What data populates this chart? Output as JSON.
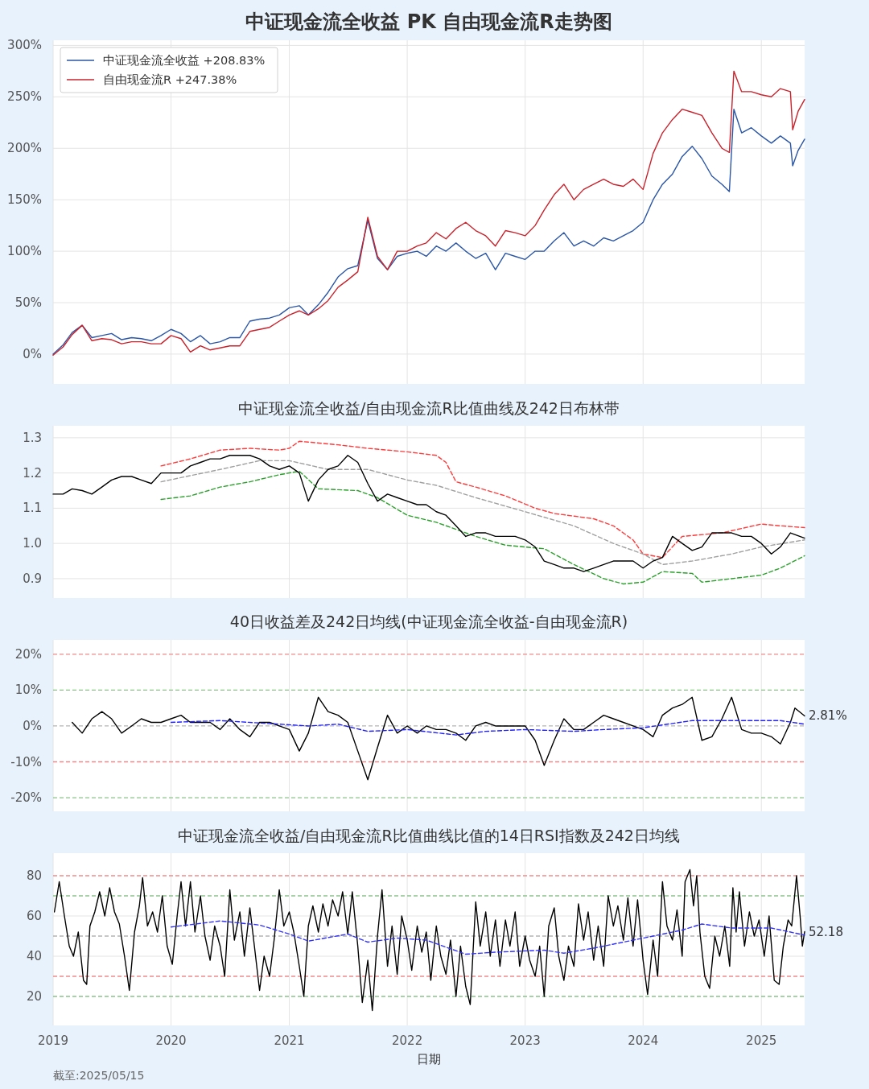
{
  "chart_data": [
    {
      "type": "line",
      "title": "中证现金流全收益 PK 自由现金流R走势图",
      "xlim": [
        "2019-01-01",
        "2025-05-15"
      ],
      "ylim": [
        -29,
        305
      ],
      "xticks": [
        "2019",
        "2020",
        "2021",
        "2022",
        "2023",
        "2024",
        "2025"
      ],
      "yticks": [
        {
          "value": 0,
          "label": "0%"
        },
        {
          "value": 50,
          "label": "50%"
        },
        {
          "value": 100,
          "label": "100%"
        },
        {
          "value": 150,
          "label": "150%"
        },
        {
          "value": 200,
          "label": "200%"
        },
        {
          "value": 250,
          "label": "250%"
        },
        {
          "value": 300,
          "label": "300%"
        }
      ],
      "grid": true,
      "legend": "top left",
      "tick_labels": "y",
      "x": [
        "2019-01",
        "2019-02",
        "2019-03",
        "2019-04",
        "2019-05",
        "2019-06",
        "2019-07",
        "2019-08",
        "2019-09",
        "2019-10",
        "2019-11",
        "2019-12",
        "2020-01",
        "2020-02",
        "2020-03",
        "2020-04",
        "2020-05",
        "2020-06",
        "2020-07",
        "2020-08",
        "2020-09",
        "2020-10",
        "2020-11",
        "2020-12",
        "2021-01",
        "2021-02",
        "2021-03",
        "2021-04",
        "2021-05",
        "2021-06",
        "2021-07",
        "2021-08",
        "2021-09",
        "2021-10",
        "2021-11",
        "2021-12",
        "2022-01",
        "2022-02",
        "2022-03",
        "2022-04",
        "2022-05",
        "2022-06",
        "2022-07",
        "2022-08",
        "2022-09",
        "2022-10",
        "2022-11",
        "2022-12",
        "2023-01",
        "2023-02",
        "2023-03",
        "2023-04",
        "2023-05",
        "2023-06",
        "2023-07",
        "2023-08",
        "2023-09",
        "2023-10",
        "2023-11",
        "2023-12",
        "2024-01",
        "2024-02",
        "2024-03",
        "2024-04",
        "2024-05",
        "2024-06",
        "2024-07",
        "2024-08",
        "2024-09",
        "2024-09-24",
        "2024-10-08",
        "2024-11",
        "2024-12",
        "2025-01",
        "2025-02",
        "2025-03",
        "2025-04",
        "2025-04-08",
        "2025-04-25",
        "2025-05-15"
      ],
      "series": [
        {
          "name": "中证现金流全收益  +208.83%",
          "color": "#2b56a6",
          "values": [
            0,
            9,
            21,
            28,
            16,
            18,
            20,
            14,
            16,
            15,
            13,
            18,
            24,
            20,
            12,
            18,
            10,
            12,
            16,
            16,
            32,
            34,
            35,
            38,
            45,
            47,
            38,
            48,
            60,
            75,
            83,
            86,
            130,
            93,
            82,
            95,
            98,
            100,
            95,
            105,
            100,
            108,
            100,
            93,
            98,
            82,
            98,
            95,
            92,
            100,
            100,
            110,
            118,
            105,
            110,
            105,
            113,
            110,
            115,
            120,
            128,
            150,
            165,
            175,
            192,
            202,
            190,
            173,
            165,
            158,
            238,
            215,
            220,
            212,
            205,
            212,
            205,
            183,
            198,
            208.83
          ]
        },
        {
          "name": "自由现金流R  +247.38%",
          "color": "#c8232c",
          "values": [
            -1,
            7,
            19,
            28,
            13,
            15,
            14,
            10,
            12,
            12,
            10,
            10,
            18,
            15,
            2,
            8,
            4,
            6,
            8,
            8,
            22,
            24,
            26,
            32,
            38,
            42,
            38,
            44,
            52,
            65,
            72,
            80,
            133,
            95,
            82,
            100,
            100,
            105,
            108,
            118,
            112,
            122,
            128,
            120,
            115,
            105,
            120,
            118,
            115,
            125,
            140,
            155,
            165,
            150,
            160,
            165,
            170,
            165,
            163,
            170,
            160,
            195,
            215,
            228,
            238,
            235,
            232,
            215,
            200,
            196,
            275,
            255,
            255,
            252,
            250,
            258,
            255,
            218,
            236,
            247.38
          ]
        }
      ]
    },
    {
      "type": "line",
      "title": "中证现金流全收益/自由现金流R比值曲线及242日布林带",
      "xlim": [
        "2019-01-01",
        "2025-05-15"
      ],
      "ylim": [
        0.845,
        1.334
      ],
      "xticks": [
        "2019",
        "2020",
        "2021",
        "2022",
        "2023",
        "2024",
        "2025"
      ],
      "yticks": [
        0.9,
        {
          "value": 1,
          "label": "1.0"
        },
        1.1,
        1.2,
        1.3
      ],
      "grid": true,
      "tick_labels": "y",
      "x": [
        "2019-01",
        "2019-02",
        "2019-03",
        "2019-04",
        "2019-05",
        "2019-06",
        "2019-07",
        "2019-08",
        "2019-09",
        "2019-10",
        "2019-11",
        "2019-12",
        "2020-01",
        "2020-02",
        "2020-03",
        "2020-04",
        "2020-05",
        "2020-06",
        "2020-07",
        "2020-08",
        "2020-09",
        "2020-10",
        "2020-11",
        "2020-12",
        "2021-01",
        "2021-02",
        "2021-03",
        "2021-04",
        "2021-05",
        "2021-06",
        "2021-07",
        "2021-08",
        "2021-09",
        "2021-10",
        "2021-11",
        "2021-12",
        "2022-01",
        "2022-02",
        "2022-03",
        "2022-04",
        "2022-05",
        "2022-06",
        "2022-07",
        "2022-08",
        "2022-09",
        "2022-10",
        "2022-11",
        "2022-12",
        "2023-01",
        "2023-02",
        "2023-03",
        "2023-04",
        "2023-05",
        "2023-06",
        "2023-07",
        "2023-08",
        "2023-09",
        "2023-10",
        "2023-11",
        "2023-12",
        "2024-01",
        "2024-02",
        "2024-03",
        "2024-04",
        "2024-05",
        "2024-06",
        "2024-07",
        "2024-08",
        "2024-09",
        "2024-10",
        "2024-11",
        "2024-12",
        "2025-01",
        "2025-02",
        "2025-03",
        "2025-04",
        "2025-05-15"
      ],
      "series": [
        {
          "color": "#ff3b3b",
          "line_style": "dashed",
          "x": [
            "2019-12",
            "2020-03",
            "2020-06",
            "2020-09",
            "2020-12",
            "2021-01",
            "2021-02",
            "2021-06",
            "2021-09",
            "2022-01",
            "2022-04",
            "2022-05",
            "2022-06",
            "2022-08",
            "2022-11",
            "2023-02",
            "2023-04",
            "2023-08",
            "2023-10",
            "2023-12",
            "2024-01",
            "2024-03",
            "2024-05",
            "2024-09",
            "2025-01",
            "2025-03",
            "2025-05-15"
          ],
          "values": [
            1.22,
            1.24,
            1.265,
            1.27,
            1.265,
            1.27,
            1.29,
            1.28,
            1.27,
            1.26,
            1.25,
            1.23,
            1.175,
            1.16,
            1.135,
            1.1,
            1.085,
            1.07,
            1.05,
            1.01,
            0.97,
            0.96,
            1.02,
            1.03,
            1.055,
            1.05,
            1.045
          ]
        },
        {
          "color": "#a0a0a0",
          "line_style": "dashed",
          "x": [
            "2019-12",
            "2020-06",
            "2020-10",
            "2021-01",
            "2021-05",
            "2021-09",
            "2022-01",
            "2022-04",
            "2022-08",
            "2023-01",
            "2023-06",
            "2023-10",
            "2024-01",
            "2024-03",
            "2024-06",
            "2024-10",
            "2025-01",
            "2025-05-15"
          ],
          "values": [
            1.175,
            1.21,
            1.235,
            1.235,
            1.21,
            1.21,
            1.18,
            1.165,
            1.13,
            1.09,
            1.05,
            1,
            0.97,
            0.94,
            0.95,
            0.97,
            0.99,
            1.01
          ]
        },
        {
          "color": "#2ca02c",
          "line_style": "dashed",
          "x": [
            "2019-12",
            "2020-03",
            "2020-06",
            "2020-09",
            "2020-12",
            "2021-02",
            "2021-04",
            "2021-08",
            "2021-10",
            "2022-01",
            "2022-04",
            "2022-06",
            "2022-08",
            "2022-11",
            "2023-03",
            "2023-06",
            "2023-09",
            "2023-11",
            "2024-01",
            "2024-03",
            "2024-06",
            "2024-07",
            "2024-10",
            "2025-01",
            "2025-03",
            "2025-05-15"
          ],
          "values": [
            1.125,
            1.135,
            1.16,
            1.175,
            1.195,
            1.205,
            1.155,
            1.15,
            1.13,
            1.08,
            1.06,
            1.04,
            1.02,
            0.995,
            0.985,
            0.94,
            0.9,
            0.885,
            0.89,
            0.92,
            0.915,
            0.89,
            0.9,
            0.91,
            0.93,
            0.965
          ]
        },
        {
          "color": "#000000",
          "values": [
            1.14,
            1.14,
            1.155,
            1.15,
            1.14,
            1.16,
            1.18,
            1.19,
            1.19,
            1.18,
            1.17,
            1.2,
            1.2,
            1.2,
            1.22,
            1.23,
            1.24,
            1.24,
            1.25,
            1.25,
            1.25,
            1.24,
            1.22,
            1.21,
            1.22,
            1.2,
            1.12,
            1.18,
            1.21,
            1.22,
            1.25,
            1.23,
            1.17,
            1.12,
            1.14,
            1.13,
            1.12,
            1.11,
            1.11,
            1.09,
            1.08,
            1.05,
            1.02,
            1.03,
            1.03,
            1.02,
            1.02,
            1.02,
            1.01,
            0.99,
            0.95,
            0.94,
            0.93,
            0.93,
            0.92,
            0.93,
            0.94,
            0.95,
            0.95,
            0.95,
            0.93,
            0.95,
            0.96,
            1.02,
            1,
            0.98,
            0.99,
            1.03,
            1.03,
            1.03,
            1.02,
            1.02,
            1,
            0.97,
            0.99,
            1.03,
            1.015
          ]
        }
      ]
    },
    {
      "type": "line",
      "title": "40日收益差及242日均线(中证现金流全收益-自由现金流R)",
      "xlim": [
        "2019-01-01",
        "2025-05-15"
      ],
      "ylim": [
        -23.8,
        24
      ],
      "xticks": [
        "2019",
        "2020",
        "2021",
        "2022",
        "2023",
        "2024",
        "2025"
      ],
      "yticks": [
        {
          "value": -20,
          "label": "-20%"
        },
        {
          "value": -10,
          "label": "-10%"
        },
        {
          "value": 0,
          "label": "0%"
        },
        {
          "value": 10,
          "label": "10%"
        },
        {
          "value": 20,
          "label": "20%"
        }
      ],
      "grid": true,
      "tick_labels": "y",
      "ref_lines": [
        {
          "axis": "y",
          "value": 20,
          "color": "#f08a8a",
          "line_style": "dashed"
        },
        {
          "axis": "y",
          "value": 10,
          "color": "#8ac48a",
          "line_style": "dashed"
        },
        {
          "axis": "y",
          "value": 0,
          "color": "#b4b4b4",
          "line_style": "dashed"
        },
        {
          "axis": "y",
          "value": -10,
          "color": "#f08a8a",
          "line_style": "dashed"
        },
        {
          "axis": "y",
          "value": -20,
          "color": "#8ac48a",
          "line_style": "dashed"
        }
      ],
      "series": [
        {
          "color": "#000000",
          "x": [
            "2019-03",
            "2019-04",
            "2019-05",
            "2019-06",
            "2019-07",
            "2019-08",
            "2019-09",
            "2019-10",
            "2019-11",
            "2019-12",
            "2020-01",
            "2020-02",
            "2020-03",
            "2020-04",
            "2020-05",
            "2020-06",
            "2020-07",
            "2020-08",
            "2020-09",
            "2020-10",
            "2020-11",
            "2020-12",
            "2021-01",
            "2021-02",
            "2021-03",
            "2021-04",
            "2021-05",
            "2021-06",
            "2021-07",
            "2021-08",
            "2021-09",
            "2021-10",
            "2021-11",
            "2021-12",
            "2022-01",
            "2022-02",
            "2022-03",
            "2022-04",
            "2022-05",
            "2022-06",
            "2022-07",
            "2022-08",
            "2022-09",
            "2022-10",
            "2022-11",
            "2022-12",
            "2023-01",
            "2023-02",
            "2023-03",
            "2023-04",
            "2023-05",
            "2023-06",
            "2023-07",
            "2023-08",
            "2023-09",
            "2023-10",
            "2023-11",
            "2023-12",
            "2024-01",
            "2024-02",
            "2024-03",
            "2024-04",
            "2024-05",
            "2024-06",
            "2024-07",
            "2024-08",
            "2024-09",
            "2024-10",
            "2024-11",
            "2024-12",
            "2025-01",
            "2025-02",
            "2025-03",
            "2025-04",
            "2025-04-15",
            "2025-05-15"
          ],
          "values": [
            1,
            -2,
            2,
            4,
            2,
            -2,
            0,
            2,
            1,
            1,
            2,
            3,
            1,
            1,
            1,
            -1,
            2,
            -1,
            -3,
            1,
            1,
            0,
            -1,
            -7,
            -2,
            8,
            4,
            3,
            1,
            -7,
            -15,
            -6,
            3,
            -2,
            0,
            -2,
            0,
            -1,
            -1,
            -2,
            -4,
            0,
            1,
            0,
            0,
            0,
            0,
            -4,
            -11,
            -4,
            2,
            -1,
            -1,
            1,
            3,
            2,
            1,
            0,
            -1,
            -3,
            3,
            5,
            6,
            8,
            -4,
            -3,
            2,
            8,
            -1,
            -2,
            -2,
            -3,
            -5,
            1,
            5,
            2.81
          ]
        },
        {
          "color": "#2020ff",
          "line_style": "dashed",
          "x": [
            "2020-01",
            "2020-06",
            "2020-12",
            "2021-03",
            "2021-06",
            "2021-09",
            "2022-01",
            "2022-06",
            "2022-09",
            "2023-01",
            "2023-06",
            "2023-09",
            "2024-01",
            "2024-06",
            "2024-10",
            "2025-01",
            "2025-03",
            "2025-05-15"
          ],
          "values": [
            1,
            1.5,
            0.5,
            0,
            0.5,
            -1.5,
            -1,
            -2.5,
            -1.5,
            -1,
            -1.5,
            -1,
            -0.5,
            1.5,
            1.5,
            1.5,
            1.5,
            0.5
          ]
        }
      ],
      "annotations": [
        {
          "text": "2.81%",
          "x": "2025-05-15",
          "y": 2.81
        }
      ]
    },
    {
      "type": "line",
      "title": "中证现金流全收益/自由现金流R比值曲线比值的14日RSI指数及242日均线",
      "xlabel": "日期",
      "xlim": [
        "2019-01-01",
        "2025-05-15"
      ],
      "ylim": [
        5.6,
        91.2
      ],
      "xticks": [
        "2019",
        "2020",
        "2021",
        "2022",
        "2023",
        "2024",
        "2025"
      ],
      "yticks": [
        20,
        40,
        60,
        80
      ],
      "grid": true,
      "ref_lines": [
        {
          "axis": "y",
          "value": 80,
          "color": "#f08a8a",
          "line_style": "dashed"
        },
        {
          "axis": "y",
          "value": 70,
          "color": "#8ac48a",
          "line_style": "dashed"
        },
        {
          "axis": "y",
          "value": 50,
          "color": "#b4b4b4",
          "line_style": "dashed"
        },
        {
          "axis": "y",
          "value": 30,
          "color": "#f08a8a",
          "line_style": "dashed"
        },
        {
          "axis": "y",
          "value": 20,
          "color": "#8ac48a",
          "line_style": "dashed"
        }
      ],
      "series": [
        {
          "color": "#000000",
          "x": [
            "2019-01-05",
            "2019-01-20",
            "2019-02-05",
            "2019-02-20",
            "2019-03-05",
            "2019-03-20",
            "2019-04-05",
            "2019-04-15",
            "2019-04-25",
            "2019-05-10",
            "2019-05-25",
            "2019-06-10",
            "2019-06-25",
            "2019-07-10",
            "2019-07-25",
            "2019-08-10",
            "2019-08-25",
            "2019-09-10",
            "2019-09-25",
            "2019-10-05",
            "2019-10-20",
            "2019-11-05",
            "2019-11-20",
            "2019-12-05",
            "2019-12-20",
            "2020-01-05",
            "2020-01-20",
            "2020-02-01",
            "2020-02-15",
            "2020-03-01",
            "2020-03-15",
            "2020-04-01",
            "2020-04-15",
            "2020-05-01",
            "2020-05-15",
            "2020-06-01",
            "2020-06-15",
            "2020-07-01",
            "2020-07-15",
            "2020-08-01",
            "2020-08-15",
            "2020-09-01",
            "2020-09-15",
            "2020-10-01",
            "2020-10-15",
            "2020-11-01",
            "2020-11-15",
            "2020-12-01",
            "2020-12-15",
            "2021-01-01",
            "2021-01-15",
            "2021-02-01",
            "2021-02-15",
            "2021-03-01",
            "2021-03-15",
            "2021-04-01",
            "2021-04-15",
            "2021-05-01",
            "2021-05-15",
            "2021-06-01",
            "2021-06-15",
            "2021-07-01",
            "2021-07-15",
            "2021-08-01",
            "2021-08-15",
            "2021-09-01",
            "2021-09-15",
            "2021-10-01",
            "2021-10-15",
            "2021-11-01",
            "2021-11-15",
            "2021-12-01",
            "2021-12-15",
            "2022-01-01",
            "2022-01-15",
            "2022-02-01",
            "2022-02-15",
            "2022-03-01",
            "2022-03-15",
            "2022-04-01",
            "2022-04-15",
            "2022-05-01",
            "2022-05-15",
            "2022-06-01",
            "2022-06-15",
            "2022-07-01",
            "2022-07-15",
            "2022-08-01",
            "2022-08-15",
            "2022-09-01",
            "2022-09-15",
            "2022-10-01",
            "2022-10-15",
            "2022-11-01",
            "2022-11-15",
            "2022-12-01",
            "2022-12-15",
            "2023-01-01",
            "2023-01-15",
            "2023-02-01",
            "2023-02-15",
            "2023-03-01",
            "2023-03-15",
            "2023-04-01",
            "2023-04-15",
            "2023-05-01",
            "2023-05-15",
            "2023-06-01",
            "2023-06-15",
            "2023-07-01",
            "2023-07-15",
            "2023-08-01",
            "2023-08-15",
            "2023-09-01",
            "2023-09-15",
            "2023-10-01",
            "2023-10-15",
            "2023-11-01",
            "2023-11-15",
            "2023-12-01",
            "2023-12-15",
            "2024-01-01",
            "2024-01-15",
            "2024-02-01",
            "2024-02-15",
            "2024-03-01",
            "2024-03-15",
            "2024-04-01",
            "2024-04-15",
            "2024-05-01",
            "2024-05-10",
            "2024-05-25",
            "2024-06-05",
            "2024-06-15",
            "2024-06-25",
            "2024-07-10",
            "2024-07-25",
            "2024-08-10",
            "2024-08-25",
            "2024-09-10",
            "2024-09-25",
            "2024-10-05",
            "2024-10-15",
            "2024-10-25",
            "2024-11-10",
            "2024-11-25",
            "2024-12-10",
            "2024-12-25",
            "2025-01-10",
            "2025-01-25",
            "2025-02-10",
            "2025-02-25",
            "2025-03-10",
            "2025-03-25",
            "2025-04-05",
            "2025-04-20",
            "2025-05-01",
            "2025-05-08",
            "2025-05-15"
          ],
          "values": [
            62,
            77,
            60,
            45,
            40,
            52,
            28,
            26,
            55,
            62,
            72,
            60,
            74,
            62,
            56,
            40,
            23,
            52,
            65,
            79,
            55,
            62,
            52,
            70,
            45,
            36,
            60,
            77,
            55,
            77,
            52,
            70,
            50,
            38,
            55,
            45,
            30,
            73,
            48,
            62,
            40,
            64,
            45,
            23,
            40,
            30,
            48,
            73,
            55,
            62,
            52,
            35,
            20,
            55,
            65,
            52,
            66,
            55,
            68,
            60,
            72,
            51,
            72,
            45,
            17,
            38,
            13,
            50,
            73,
            35,
            55,
            31,
            60,
            48,
            33,
            55,
            42,
            52,
            28,
            55,
            40,
            31,
            48,
            20,
            45,
            25,
            16,
            67,
            45,
            62,
            40,
            58,
            35,
            58,
            45,
            62,
            35,
            50,
            38,
            30,
            45,
            20,
            55,
            64,
            40,
            28,
            45,
            35,
            66,
            48,
            62,
            38,
            55,
            35,
            70,
            55,
            65,
            48,
            69,
            45,
            68,
            38,
            21,
            48,
            30,
            77,
            55,
            48,
            63,
            40,
            77,
            83,
            65,
            80,
            52,
            30,
            24,
            50,
            40,
            55,
            35,
            74,
            52,
            72,
            45,
            62,
            50,
            58,
            40,
            60,
            28,
            26,
            45,
            58,
            55,
            80,
            60,
            45,
            52.18
          ]
        },
        {
          "color": "#3333ff",
          "line_style": "dashed",
          "x": [
            "2020-01",
            "2020-06",
            "2020-10",
            "2021-01",
            "2021-03",
            "2021-07",
            "2021-09",
            "2021-12",
            "2022-03",
            "2022-07",
            "2022-10",
            "2023-03",
            "2023-05",
            "2023-08",
            "2023-11",
            "2024-02",
            "2024-05",
            "2024-07",
            "2024-10",
            "2025-02",
            "2025-05-15"
          ],
          "values": [
            54.5,
            57.5,
            55.5,
            51,
            47.5,
            51,
            47,
            49,
            48,
            41,
            42,
            43,
            41.5,
            44,
            47,
            50,
            53,
            56,
            54,
            54,
            50.5
          ]
        }
      ],
      "annotations": [
        {
          "text": "52.18",
          "x": "2025-05-15",
          "y": 52.18
        },
        "截至:2025/05/15"
      ]
    }
  ]
}
